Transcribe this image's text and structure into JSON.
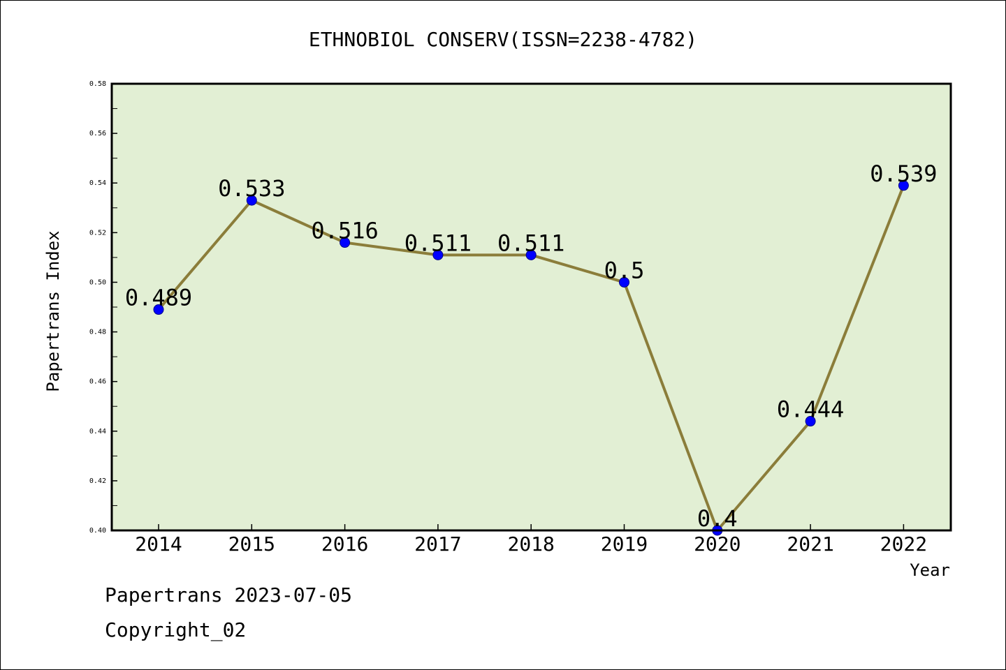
{
  "chart_data": {
    "type": "line",
    "title": "ETHNOBIOL CONSERV(ISSN=2238-4782)",
    "xlabel": "Year",
    "ylabel": "Papertrans Index",
    "categories": [
      "2014",
      "2015",
      "2016",
      "2017",
      "2018",
      "2019",
      "2020",
      "2021",
      "2022"
    ],
    "values": [
      0.489,
      0.533,
      0.516,
      0.511,
      0.511,
      0.5,
      0.4,
      0.444,
      0.539
    ],
    "data_labels": [
      "0.489",
      "0.533",
      "0.516",
      "0.511",
      "0.511",
      "0.5",
      "0.4",
      "0.444",
      "0.539"
    ],
    "ylim": [
      0.4,
      0.58
    ],
    "yticks": [
      "0.40",
      "0.42",
      "0.44",
      "0.46",
      "0.48",
      "0.50",
      "0.52",
      "0.54",
      "0.56",
      "0.58"
    ],
    "grid": false,
    "colors": {
      "plot_background": "#e2efd4",
      "line": "#8b7d3a",
      "marker": "#0000ff",
      "marker_edge": "#00008b",
      "axes": "#000000"
    }
  },
  "footer": {
    "stamp": "Papertrans 2023-07-05",
    "copyright": "Copyright_02"
  }
}
